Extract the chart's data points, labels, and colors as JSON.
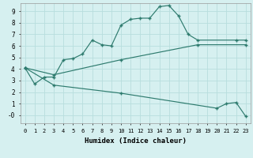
{
  "xlabel": "Humidex (Indice chaleur)",
  "background_color": "#d6f0f0",
  "line_color": "#2e7b6e",
  "grid_color": "#b8dedd",
  "xlim": [
    -0.5,
    23.5
  ],
  "ylim": [
    -0.7,
    9.7
  ],
  "xticks": [
    0,
    1,
    2,
    3,
    4,
    5,
    6,
    7,
    8,
    9,
    10,
    11,
    12,
    13,
    14,
    15,
    16,
    17,
    18,
    19,
    20,
    21,
    22,
    23
  ],
  "yticks": [
    0,
    1,
    2,
    3,
    4,
    5,
    6,
    7,
    8,
    9
  ],
  "ytick_labels": [
    "-0",
    "1",
    "2",
    "3",
    "4",
    "5",
    "6",
    "7",
    "8",
    "9"
  ],
  "line1_x": [
    0,
    1,
    2,
    3,
    4,
    5,
    6,
    7,
    8,
    9,
    10,
    11,
    12,
    13,
    14,
    15,
    16,
    17,
    18,
    22,
    23
  ],
  "line1_y": [
    4.1,
    2.7,
    3.3,
    3.3,
    4.8,
    4.9,
    5.3,
    6.5,
    6.1,
    6.0,
    7.8,
    8.3,
    8.4,
    8.4,
    9.4,
    9.5,
    8.6,
    7.0,
    6.5,
    6.5,
    6.5
  ],
  "line2_x": [
    0,
    3,
    10,
    18,
    23
  ],
  "line2_y": [
    4.1,
    3.5,
    4.8,
    6.1,
    6.1
  ],
  "line3_x": [
    0,
    3,
    10,
    20,
    21,
    22,
    23
  ],
  "line3_y": [
    4.1,
    2.6,
    1.9,
    0.6,
    1.0,
    1.1,
    -0.1
  ]
}
